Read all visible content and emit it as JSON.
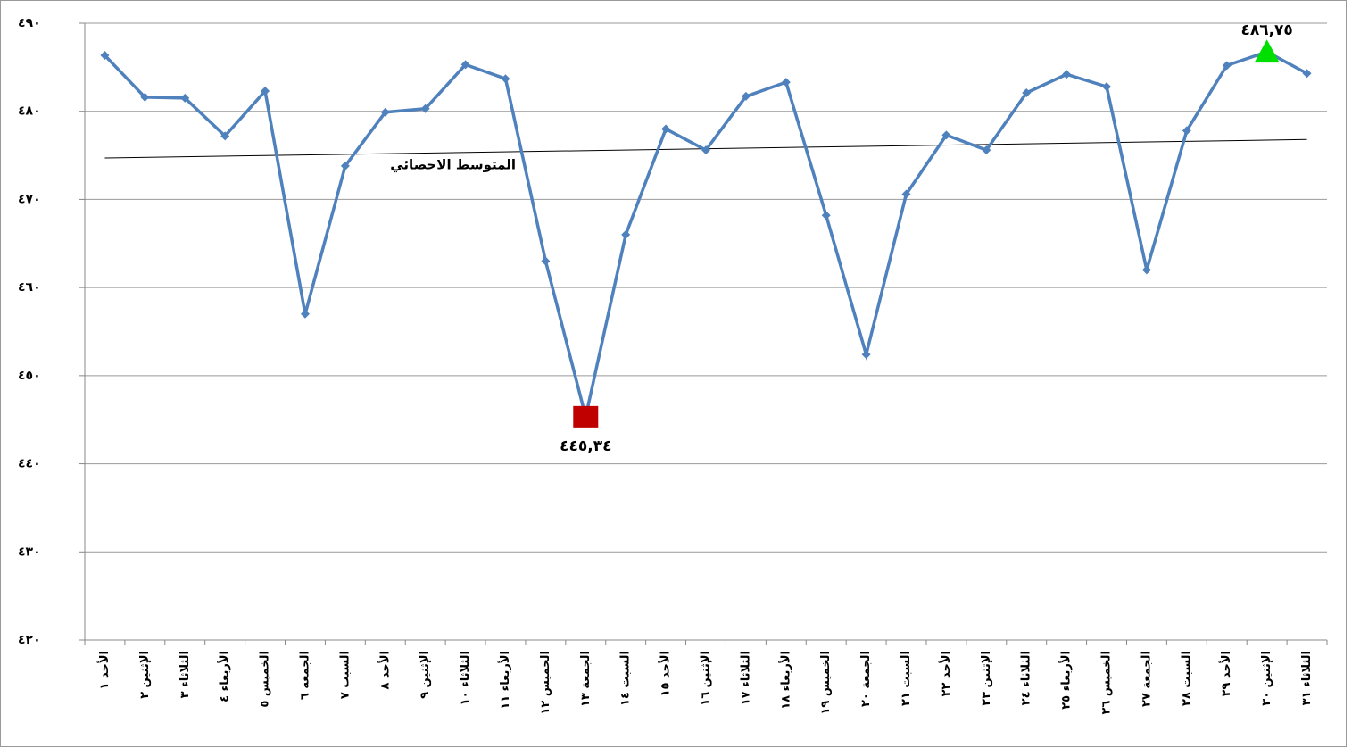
{
  "chart_data": {
    "type": "line",
    "categories": [
      "الأحد ١",
      "الإثنين ٢",
      "الثلاثاء ٣",
      "الأربعاء ٤",
      "الخميس ٥",
      "الجمعة ٦",
      "السبت ٧",
      "الأحد ٨",
      "الإثنين ٩",
      "الثلاثاء ١٠",
      "الأربعاء ١١",
      "الخميس ١٢",
      "الجمعة ١٣",
      "السبت ١٤",
      "الأحد ١٥",
      "الإثنين ١٦",
      "الثلاثاء ١٧",
      "الأربعاء ١٨",
      "الخميس ١٩",
      "الجمعة ٢٠",
      "السبت ٢١",
      "الأحد ٢٢",
      "الإثنين ٢٣",
      "الثلاثاء ٢٤",
      "الأربعاء ٢٥",
      "الخميس ٢٦",
      "الجمعة ٢٧",
      "السبت ٢٨",
      "الأحد ٢٩",
      "الإثنين ٣٠",
      "الثلاثاء ٣١"
    ],
    "values": [
      486.35,
      481.6,
      481.5,
      477.2,
      482.3,
      457.0,
      473.8,
      479.9,
      480.3,
      485.3,
      483.7,
      463.0,
      445.34,
      466.0,
      478.0,
      475.6,
      481.7,
      483.3,
      468.2,
      452.4,
      470.6,
      477.3,
      475.6,
      482.1,
      484.2,
      482.8,
      462.0,
      477.8,
      485.2,
      486.75,
      484.3
    ],
    "color": "#4f81bd",
    "trend": {
      "name": "المتوسط الاحصائي",
      "values": [
        474.7,
        476.8
      ],
      "color": "#000000"
    },
    "highlights": [
      {
        "index": 12,
        "shape": "square",
        "color": "#c00000",
        "label": "٤٤٥,٣٤"
      },
      {
        "index": 29,
        "shape": "triangle",
        "color": "#00e000",
        "label": "٤٨٦,٧٥"
      }
    ],
    "ylim": [
      420,
      490
    ],
    "yticks": [
      {
        "value": 420,
        "label": "٤٢٠"
      },
      {
        "value": 430,
        "label": "٤٣٠"
      },
      {
        "value": 440,
        "label": "٤٤٠"
      },
      {
        "value": 450,
        "label": "٤٥٠"
      },
      {
        "value": 460,
        "label": "٤٦٠"
      },
      {
        "value": 470,
        "label": "٤٧٠"
      },
      {
        "value": 480,
        "label": "٤٨٠"
      },
      {
        "value": 490,
        "label": "٤٩٠"
      }
    ],
    "grid": true
  }
}
